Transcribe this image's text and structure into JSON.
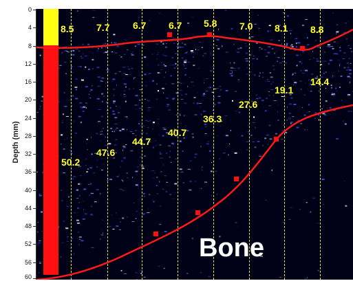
{
  "axis": {
    "ylabel": "Depth (mm)",
    "ticks": [
      "0",
      "4",
      "8",
      "12",
      "16",
      "20",
      "24",
      "28",
      "32",
      "36",
      "40",
      "44",
      "48",
      "52",
      "56",
      "60"
    ]
  },
  "measurements": {
    "top": [
      "8.5",
      "7.7",
      "6.7",
      "6.7",
      "5.8",
      "7.0",
      "8.1",
      "8.8"
    ],
    "middle": [
      "50.2",
      "47.6",
      "44.7",
      "40.7",
      "36.3",
      "27.6",
      "19.1",
      "14.4"
    ]
  },
  "annotation": {
    "bone_label": "Bone"
  },
  "colors": {
    "background": "#000016",
    "speckle": "#ffffff",
    "curve": "#ff1a1a",
    "marker": "#ff1010",
    "label": "#ffff30",
    "guide": "#e8e832",
    "depth_bar_top": "#ffff10",
    "depth_bar_bottom": "#ff1010"
  }
}
